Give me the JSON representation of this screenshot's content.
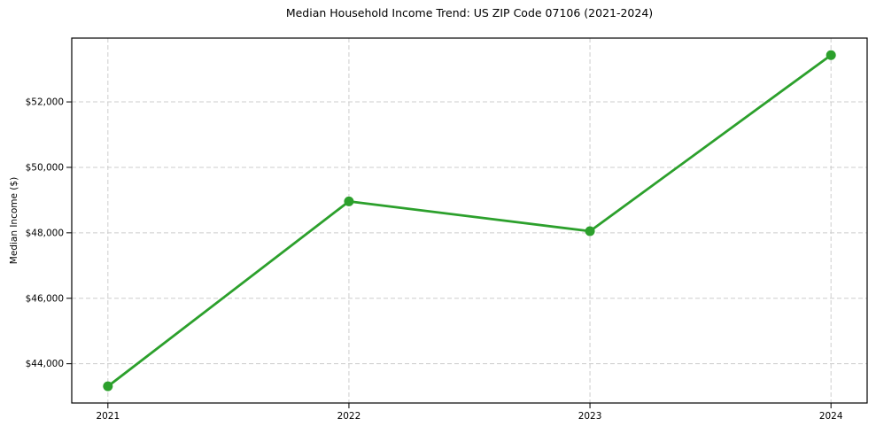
{
  "chart_data": {
    "type": "line",
    "title": "Median Household Income Trend: US ZIP Code 07106 (2021-2024)",
    "xlabel": "",
    "ylabel": "Median Income ($)",
    "x": [
      "2021",
      "2022",
      "2023",
      "2024"
    ],
    "series": [
      {
        "name": "Median Household Income",
        "values": [
          43310,
          48960,
          48050,
          53430
        ]
      }
    ],
    "ylim": [
      42800,
      53950
    ],
    "yticks": {
      "values": [
        44000,
        46000,
        48000,
        50000,
        52000
      ],
      "labels": [
        "$44,000",
        "$46,000",
        "$48,000",
        "$50,000",
        "$52,000"
      ]
    },
    "grid": true,
    "grid_style": "dashed",
    "legend": false,
    "x_margin": 0.15,
    "style": {
      "line_color": "#2ca02c",
      "marker": "circle",
      "marker_color": "#2ca02c",
      "grid_color": "#cdcdcd",
      "spine_color": "#000000",
      "tick_color": "#000000",
      "text_color": "#000000",
      "background": "#ffffff"
    }
  }
}
